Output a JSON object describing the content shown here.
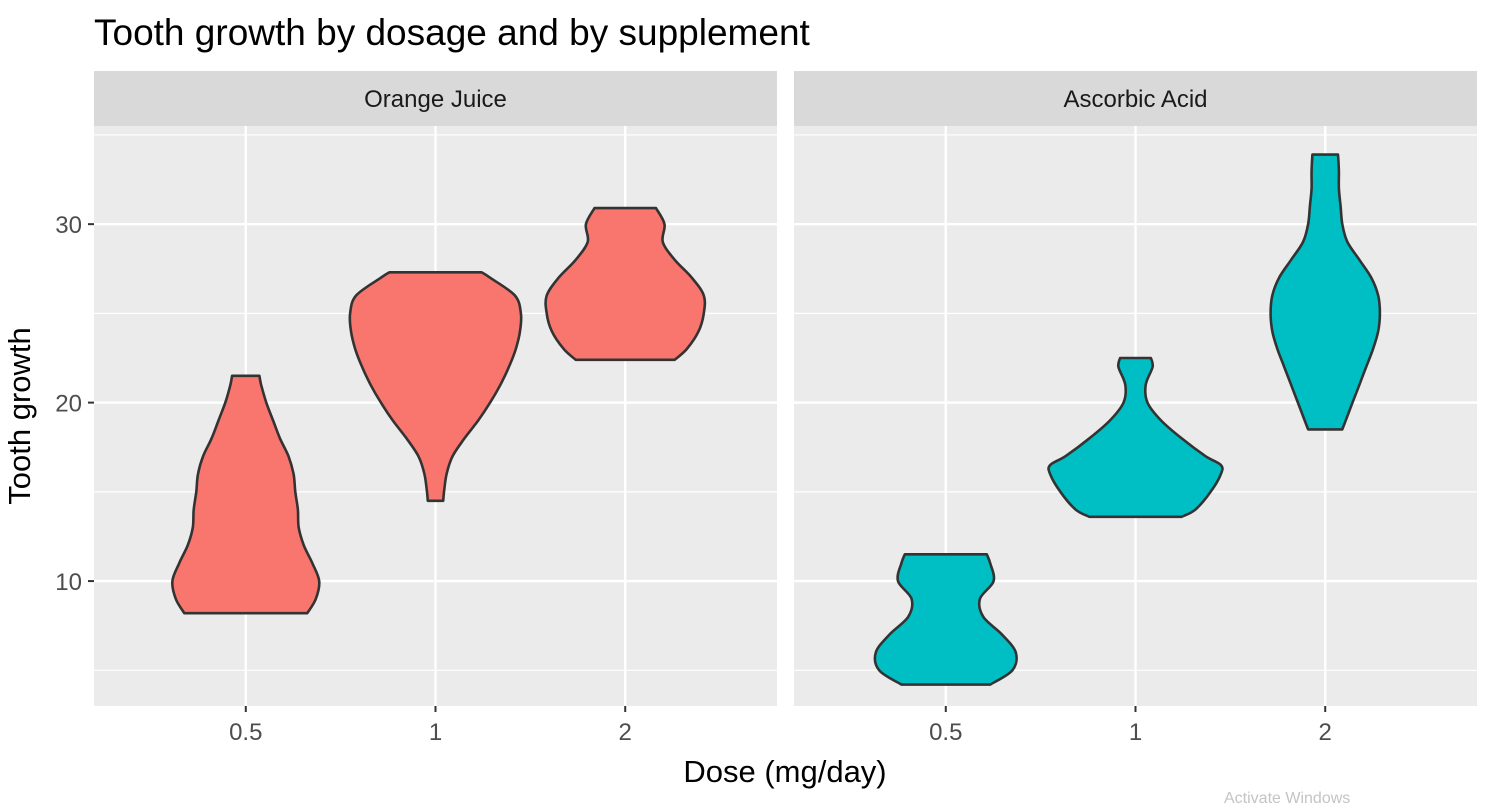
{
  "chart_data": {
    "type": "violin",
    "title": "Tooth growth by dosage and by supplement",
    "xlabel": "Dose (mg/day)",
    "ylabel": "Tooth growth",
    "categories": [
      "0.5",
      "1",
      "2"
    ],
    "y_ticks": [
      10,
      20,
      30
    ],
    "ylim": [
      3,
      35.5
    ],
    "grid": true,
    "legend": "none",
    "facets": [
      {
        "name": "Orange Juice",
        "color": "#F8766D",
        "violins": [
          {
            "dose": "0.5",
            "min": 8.2,
            "max": 21.5,
            "profile": [
              [
                8.2,
                0.72
              ],
              [
                9,
                0.82
              ],
              [
                10,
                0.86
              ],
              [
                11,
                0.78
              ],
              [
                12,
                0.68
              ],
              [
                13,
                0.62
              ],
              [
                14,
                0.61
              ],
              [
                15,
                0.58
              ],
              [
                16,
                0.56
              ],
              [
                17,
                0.5
              ],
              [
                18,
                0.4
              ],
              [
                19,
                0.32
              ],
              [
                20,
                0.24
              ],
              [
                21,
                0.18
              ],
              [
                21.5,
                0.16
              ]
            ]
          },
          {
            "dose": "1",
            "min": 14.5,
            "max": 27.3,
            "profile": [
              [
                14.5,
                0.09
              ],
              [
                15,
                0.1
              ],
              [
                16,
                0.13
              ],
              [
                17,
                0.2
              ],
              [
                18,
                0.34
              ],
              [
                19,
                0.5
              ],
              [
                20,
                0.64
              ],
              [
                21,
                0.76
              ],
              [
                22,
                0.86
              ],
              [
                23,
                0.94
              ],
              [
                24,
                0.99
              ],
              [
                25,
                1.0
              ],
              [
                26,
                0.93
              ],
              [
                27,
                0.64
              ],
              [
                27.3,
                0.54
              ]
            ]
          },
          {
            "dose": "2",
            "min": 22.4,
            "max": 30.9,
            "profile": [
              [
                22.4,
                0.58
              ],
              [
                23,
                0.72
              ],
              [
                24,
                0.86
              ],
              [
                25,
                0.92
              ],
              [
                26,
                0.92
              ],
              [
                27,
                0.78
              ],
              [
                28,
                0.58
              ],
              [
                29,
                0.44
              ],
              [
                30,
                0.46
              ],
              [
                30.9,
                0.36
              ]
            ]
          }
        ]
      },
      {
        "name": "Ascorbic Acid",
        "color": "#00BFC4",
        "violins": [
          {
            "dose": "0.5",
            "min": 4.2,
            "max": 11.5,
            "profile": [
              [
                4.2,
                0.52
              ],
              [
                5,
                0.78
              ],
              [
                6,
                0.82
              ],
              [
                7,
                0.66
              ],
              [
                8,
                0.44
              ],
              [
                9,
                0.4
              ],
              [
                10,
                0.56
              ],
              [
                11,
                0.52
              ],
              [
                11.5,
                0.48
              ]
            ]
          },
          {
            "dose": "1",
            "min": 13.6,
            "max": 22.5,
            "profile": [
              [
                13.6,
                0.54
              ],
              [
                14,
                0.7
              ],
              [
                15,
                0.88
              ],
              [
                16,
                1.0
              ],
              [
                16.5,
                1.0
              ],
              [
                17,
                0.82
              ],
              [
                18,
                0.54
              ],
              [
                19,
                0.3
              ],
              [
                20,
                0.14
              ],
              [
                21,
                0.12
              ],
              [
                22,
                0.2
              ],
              [
                22.5,
                0.18
              ]
            ]
          },
          {
            "dose": "2",
            "min": 18.5,
            "max": 33.9,
            "profile": [
              [
                18.5,
                0.2
              ],
              [
                19,
                0.24
              ],
              [
                20,
                0.32
              ],
              [
                21,
                0.4
              ],
              [
                22,
                0.48
              ],
              [
                23,
                0.56
              ],
              [
                24,
                0.62
              ],
              [
                25,
                0.64
              ],
              [
                26,
                0.62
              ],
              [
                27,
                0.54
              ],
              [
                28,
                0.4
              ],
              [
                29,
                0.26
              ],
              [
                30,
                0.2
              ],
              [
                31,
                0.18
              ],
              [
                32,
                0.16
              ],
              [
                33,
                0.16
              ],
              [
                33.9,
                0.15
              ]
            ]
          }
        ]
      }
    ]
  },
  "watermark": "Activate Windows"
}
